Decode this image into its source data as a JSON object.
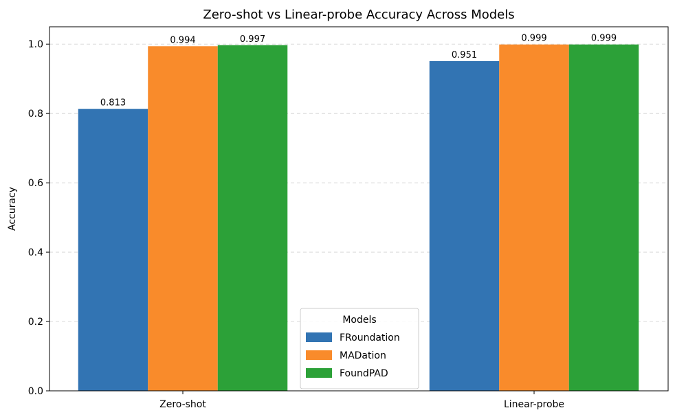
{
  "chart_data": {
    "type": "bar",
    "title": "Zero-shot vs Linear-probe Accuracy Across Models",
    "xlabel": "",
    "ylabel": "Accuracy",
    "categories": [
      "Zero-shot",
      "Linear-probe"
    ],
    "ylim": [
      0,
      1.05
    ],
    "yticks": [
      "0.0",
      "0.2",
      "0.4",
      "0.6",
      "0.8",
      "1.0"
    ],
    "grid": "y-dashed",
    "legend": {
      "title": "Models",
      "placement": "bottom-center"
    },
    "series": [
      {
        "name": "FRoundation",
        "color": "#3274b3",
        "values": [
          0.813,
          0.951
        ],
        "labels": [
          "0.813",
          "0.951"
        ]
      },
      {
        "name": "MADation",
        "color": "#f98b2b",
        "values": [
          0.994,
          0.999
        ],
        "labels": [
          "0.994",
          "0.999"
        ]
      },
      {
        "name": "FoundPAD",
        "color": "#2ca138",
        "values": [
          0.997,
          0.999
        ],
        "labels": [
          "0.997",
          "0.999"
        ]
      }
    ]
  }
}
